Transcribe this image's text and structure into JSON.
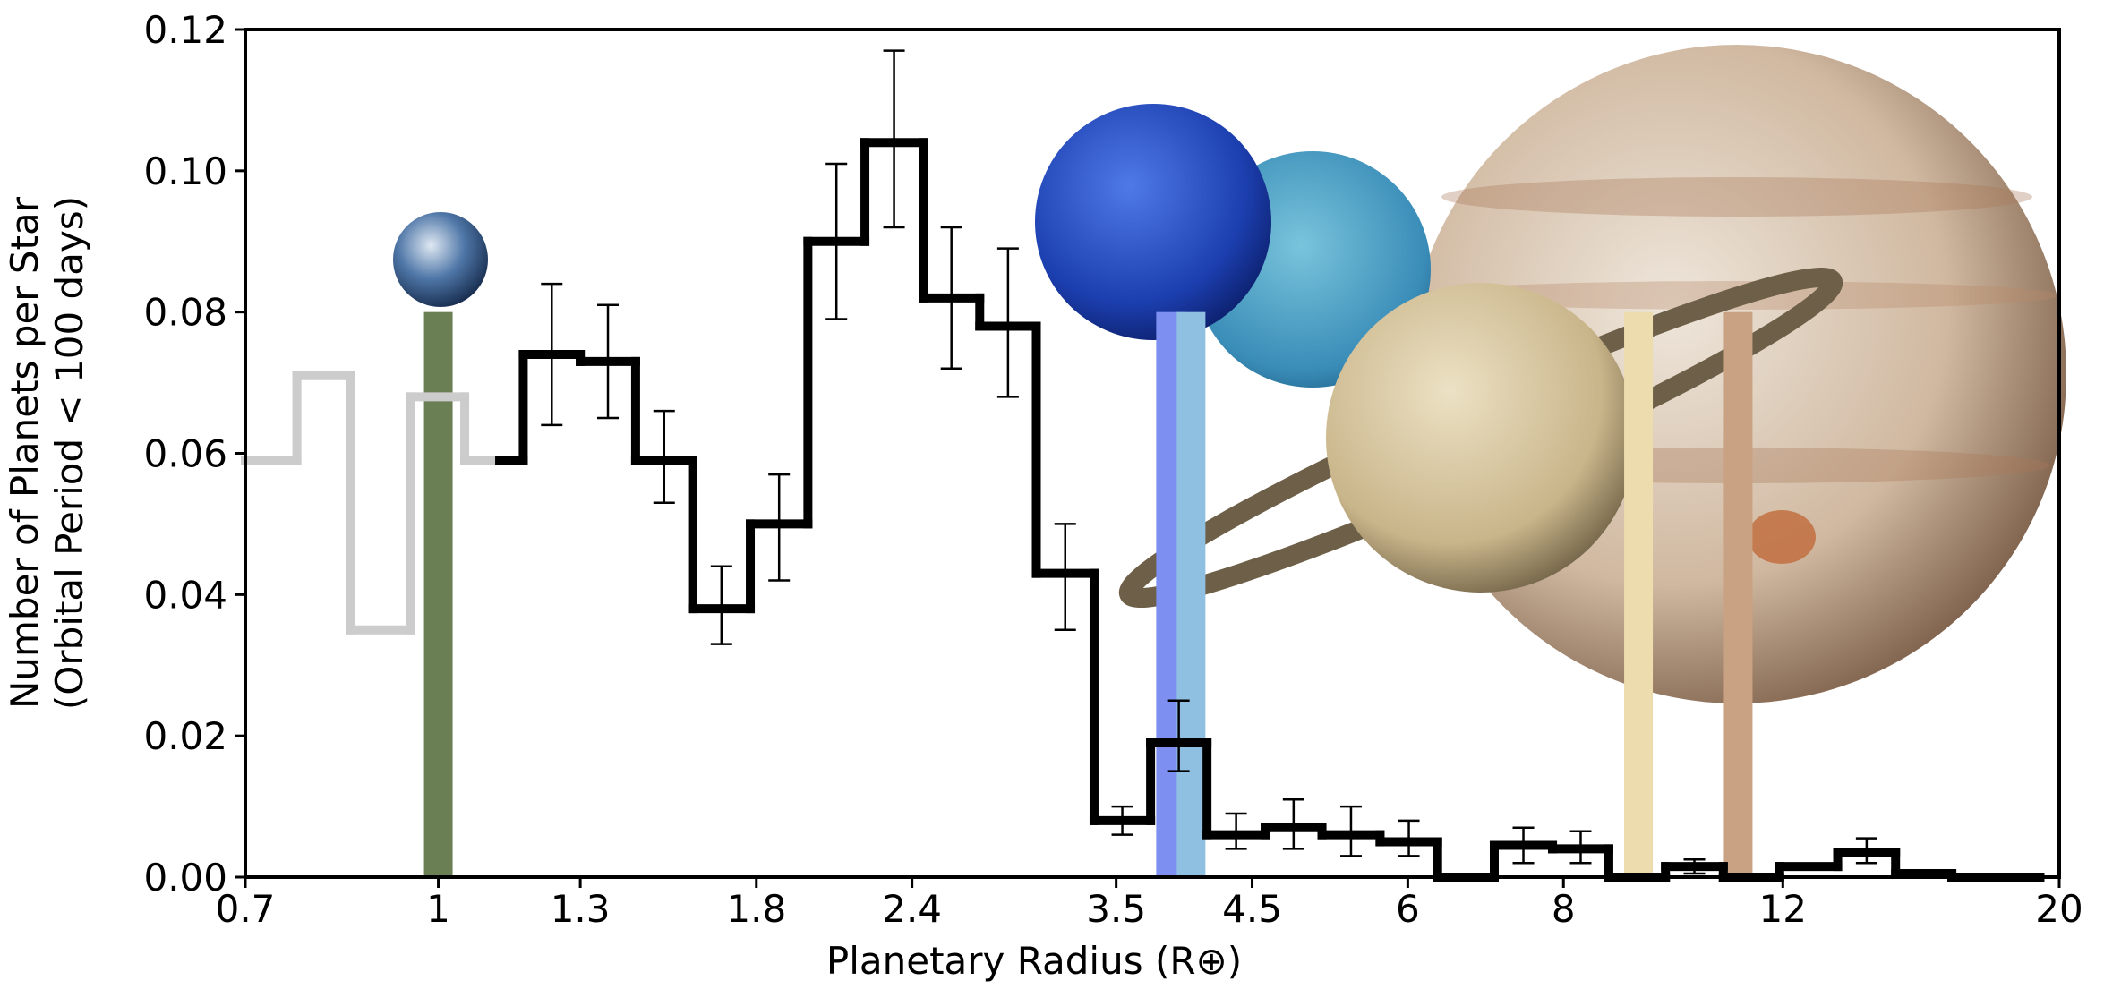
{
  "chart_data": {
    "type": "step-histogram",
    "xlabel": "Planetary Radius (R⊕)",
    "ylabel": [
      "Number of Planets per Star",
      "(Orbital Period < 100 days)"
    ],
    "xscale": "log",
    "xlim": [
      0.7,
      20
    ],
    "ylim": [
      0,
      0.12
    ],
    "xticks": [
      0.7,
      1,
      1.3,
      1.8,
      2.4,
      3.5,
      4.5,
      6,
      8,
      12,
      20
    ],
    "yticks": [
      {
        "value": 0,
        "label": "0.00"
      },
      {
        "value": 0.02,
        "label": "0.02"
      },
      {
        "value": 0.04,
        "label": "0.04"
      },
      {
        "value": 0.06,
        "label": "0.06"
      },
      {
        "value": 0.08,
        "label": "0.08"
      },
      {
        "value": 0.1,
        "label": "0.10"
      },
      {
        "value": 0.12,
        "label": "0.12"
      }
    ],
    "series": [
      {
        "color": "#cccccc",
        "bins": [
          0.7,
          0.77,
          0.85,
          0.95,
          1.05,
          1.12
        ],
        "values": [
          0.059,
          0.071,
          0.035,
          0.068,
          0.059
        ]
      },
      {
        "color": "#000000",
        "bins": [
          1.12,
          1.17,
          1.3,
          1.44,
          1.6,
          1.78,
          1.98,
          2.2,
          2.45,
          2.72,
          3.02,
          3.36,
          3.73,
          4.14,
          4.61,
          5.12,
          5.7,
          6.34,
          7.04,
          7.84,
          8.7,
          9.66,
          10.75,
          11.93,
          13.28,
          14.78,
          16.4,
          19.3
        ],
        "values": [
          0.059,
          0.074,
          0.073,
          0.059,
          0.038,
          0.05,
          0.09,
          0.104,
          0.082,
          0.078,
          0.043,
          0.008,
          0.019,
          0.006,
          0.007,
          0.006,
          0.005,
          0,
          0.0045,
          0.004,
          0,
          0.0015,
          0,
          0.0015,
          0.0035,
          0.0005,
          0
        ],
        "err_low": [
          null,
          0.064,
          0.065,
          0.053,
          0.033,
          0.042,
          0.079,
          0.092,
          0.072,
          0.068,
          0.035,
          0.006,
          0.015,
          0.004,
          0.004,
          0.003,
          0.003,
          null,
          0.002,
          0.002,
          null,
          0.0005,
          null,
          null,
          0.002,
          null,
          null
        ],
        "err_high": [
          null,
          0.084,
          0.081,
          0.066,
          0.044,
          0.057,
          0.101,
          0.117,
          0.092,
          0.089,
          0.05,
          0.01,
          0.025,
          0.009,
          0.011,
          0.01,
          0.008,
          null,
          0.007,
          0.0065,
          null,
          0.0025,
          null,
          null,
          0.0055,
          null,
          null
        ]
      }
    ],
    "markers": {
      "x": [
        1,
        3.87,
        4.02,
        9.19,
        11.05
      ],
      "values": [
        0.08,
        0.08,
        0.08,
        0.08,
        0.08
      ],
      "colors": [
        "#6b7f55",
        "#7d8ff0",
        "#8fc0e2",
        "#ecdcae",
        "#c9a183"
      ]
    }
  }
}
